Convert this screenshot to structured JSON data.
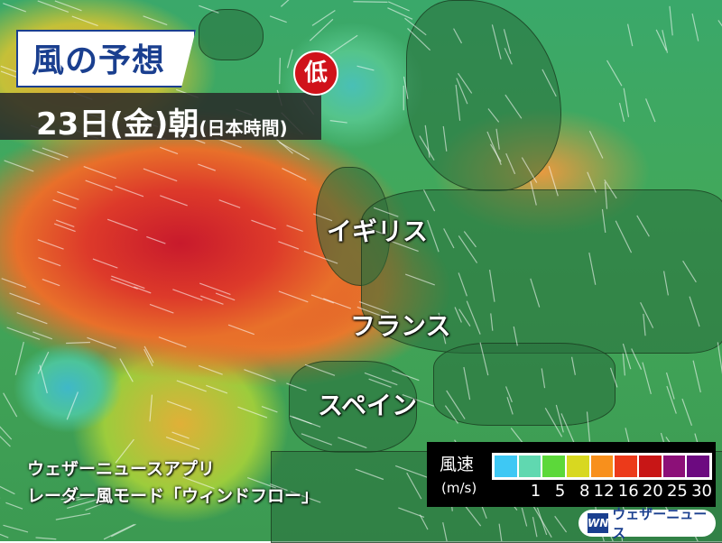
{
  "title": "風の予想",
  "date": {
    "main": "23日(金)朝",
    "sub": "(日本時間)"
  },
  "low_pressure_marker": "低",
  "map_labels": {
    "uk": "イギリス",
    "france": "フランス",
    "spain": "スペイン"
  },
  "app_note": {
    "line1": "ウェザーニュースアプリ",
    "line2": "レーダー風モード「ウィンドフロー」"
  },
  "legend": {
    "title": "風速",
    "unit": "(m/s)",
    "colors": [
      "#3ec8f4",
      "#60d8b0",
      "#5cd83a",
      "#d8d820",
      "#f8901c",
      "#ec3a1a",
      "#c81616",
      "#8c1078",
      "#6c0a80"
    ],
    "ticks": [
      "1",
      "5",
      "8",
      "12",
      "16",
      "20",
      "25",
      "30"
    ]
  },
  "brand": {
    "mark": "WN",
    "name": "ウェザーニュース"
  }
}
